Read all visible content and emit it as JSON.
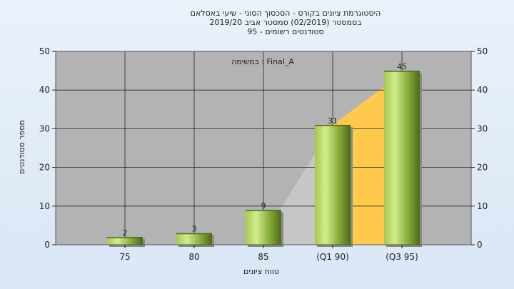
{
  "chart_data": {
    "type": "bar",
    "title_lines": [
      "היסטוגרמת ציונים בקורס - הסכסוך הסוני - שיעי באסלאם",
      "בסמסטר  (02/2019)  סמסטר אביב 2019/20",
      "סטודנטים רשומים - 95"
    ],
    "legend_text": "במשימה : Final_A",
    "categories": [
      "75",
      "80",
      "85",
      "(Q1 90)",
      "(Q3 95)"
    ],
    "values": [
      2,
      3,
      9,
      31,
      45
    ],
    "data_labels": [
      "2",
      "3",
      "9",
      "31",
      "45"
    ],
    "xlabel": "טווח ציונים",
    "ylabel": "מספר סטודנטים",
    "ylim": [
      0,
      50
    ],
    "yticks": [
      "0",
      "10",
      "20",
      "30",
      "40",
      "50"
    ],
    "grid": true,
    "colors": {
      "plot_background": "#b3b3b3",
      "bar_light": "#d3ec8c",
      "bar_mid": "#a6c94e",
      "bar_dark": "#4c6a1a",
      "quartile_band": "#ffc94d",
      "lower_band": "#c6c6c6"
    }
  }
}
